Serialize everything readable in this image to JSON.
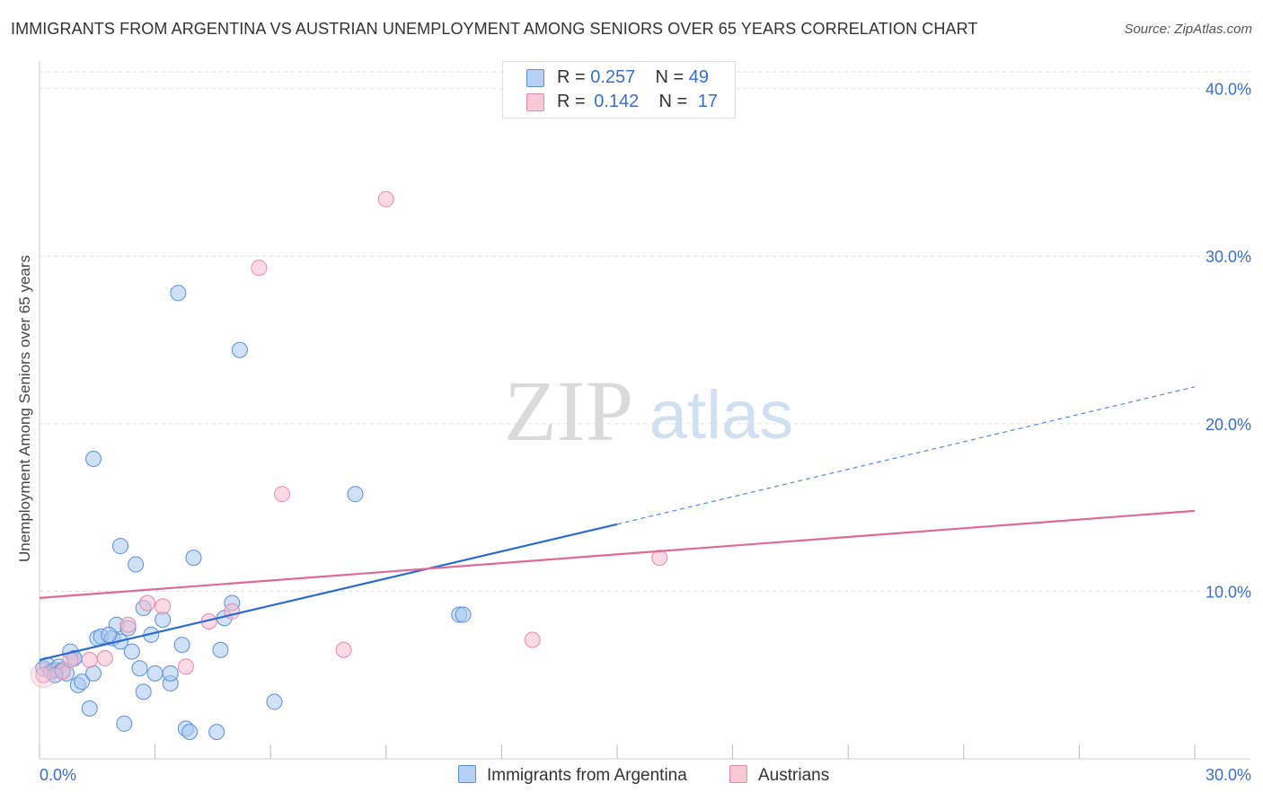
{
  "title": "IMMIGRANTS FROM ARGENTINA VS AUSTRIAN UNEMPLOYMENT AMONG SENIORS OVER 65 YEARS CORRELATION CHART",
  "source": "Source: ZipAtlas.com",
  "watermark": {
    "zip": "ZIP",
    "atlas": "atlas"
  },
  "legend": {
    "r_label": "R =",
    "n_label": "N =",
    "rows": [
      {
        "r": "0.257",
        "n": "49"
      },
      {
        "r": "0.142",
        "n": "17"
      }
    ]
  },
  "colors": {
    "blue_fill": "#a8c8f0",
    "blue_stroke": "#5b8fd6",
    "blue_line": "#2a6bd1",
    "pink_fill": "#f7bcd0",
    "pink_stroke": "#e68aa8",
    "pink_line": "#e06a96",
    "tick_text": "#3a6fc9",
    "grid": "#dddddd"
  },
  "chart_data": {
    "type": "scatter",
    "xlabel": "",
    "ylabel": "Unemployment Among Seniors over 65 years",
    "xlim": [
      0,
      30
    ],
    "ylim": [
      0,
      41
    ],
    "x_tick_labels": [
      "0.0%",
      "30.0%"
    ],
    "y_ticks": [
      10,
      20,
      30,
      40
    ],
    "y_tick_labels": [
      "10.0%",
      "20.0%",
      "30.0%",
      "40.0%"
    ],
    "grid": true,
    "legend_position": "top-center",
    "series": [
      {
        "name": "Immigrants from Argentina",
        "color": "#5b8fd6",
        "points": [
          [
            0.1,
            5.4
          ],
          [
            0.2,
            5.6
          ],
          [
            0.3,
            5.2
          ],
          [
            0.4,
            5.3
          ],
          [
            0.5,
            5.5
          ],
          [
            0.6,
            5.3
          ],
          [
            0.7,
            5.1
          ],
          [
            0.8,
            6.4
          ],
          [
            0.9,
            6.0
          ],
          [
            1.0,
            4.4
          ],
          [
            1.1,
            4.6
          ],
          [
            1.3,
            3.0
          ],
          [
            1.4,
            5.1
          ],
          [
            1.5,
            7.2
          ],
          [
            1.6,
            7.3
          ],
          [
            1.9,
            7.2
          ],
          [
            2.0,
            8.0
          ],
          [
            2.1,
            7.0
          ],
          [
            2.1,
            12.7
          ],
          [
            2.2,
            2.1
          ],
          [
            2.3,
            7.8
          ],
          [
            2.4,
            6.4
          ],
          [
            2.5,
            11.6
          ],
          [
            2.6,
            5.4
          ],
          [
            2.7,
            4.0
          ],
          [
            2.7,
            9.0
          ],
          [
            2.9,
            7.4
          ],
          [
            3.0,
            5.1
          ],
          [
            3.2,
            8.3
          ],
          [
            3.4,
            4.5
          ],
          [
            3.4,
            5.1
          ],
          [
            3.7,
            6.8
          ],
          [
            3.8,
            1.8
          ],
          [
            3.9,
            1.6
          ],
          [
            4.0,
            12.0
          ],
          [
            4.6,
            1.6
          ],
          [
            4.7,
            6.5
          ],
          [
            4.8,
            8.4
          ],
          [
            5.0,
            9.3
          ],
          [
            5.2,
            24.4
          ],
          [
            6.1,
            3.4
          ],
          [
            8.2,
            15.8
          ],
          [
            10.9,
            8.6
          ],
          [
            11.0,
            8.6
          ],
          [
            1.4,
            17.9
          ],
          [
            3.6,
            27.8
          ],
          [
            0.4,
            5.0
          ],
          [
            0.9,
            6.0
          ],
          [
            1.8,
            7.4
          ]
        ]
      },
      {
        "name": "Austrians",
        "color": "#e68aa8",
        "points": [
          [
            0.1,
            5.0
          ],
          [
            0.6,
            5.2
          ],
          [
            0.8,
            5.9
          ],
          [
            1.3,
            5.9
          ],
          [
            1.7,
            6.0
          ],
          [
            2.3,
            8.0
          ],
          [
            2.8,
            9.3
          ],
          [
            3.2,
            9.1
          ],
          [
            3.8,
            5.5
          ],
          [
            4.4,
            8.2
          ],
          [
            5.0,
            8.8
          ],
          [
            5.7,
            29.3
          ],
          [
            6.3,
            15.8
          ],
          [
            7.9,
            6.5
          ],
          [
            9.0,
            33.4
          ],
          [
            12.8,
            7.1
          ],
          [
            16.1,
            12.0
          ]
        ]
      }
    ],
    "trend_lines": [
      {
        "series": "Immigrants from Argentina",
        "x_start": 0,
        "y_start": 5.9,
        "x_solid_end": 15,
        "y_solid_end": 14.0,
        "x_end": 30,
        "y_end": 22.2
      },
      {
        "series": "Austrians",
        "x_start": 0,
        "y_start": 9.6,
        "x_end": 30,
        "y_end": 14.8
      }
    ]
  }
}
